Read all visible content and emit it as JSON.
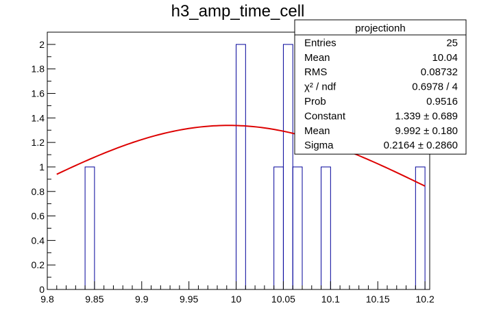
{
  "chart_data": {
    "type": "histogram",
    "title": "h3_amp_time_cell",
    "xlabel": "",
    "ylabel": "",
    "xlim": [
      9.8,
      10.205
    ],
    "ylim": [
      0,
      2.1
    ],
    "x_ticks": [
      "9.8",
      "9.85",
      "9.9",
      "9.95",
      "10",
      "10.05",
      "10.1",
      "10.15",
      "10.2"
    ],
    "y_ticks": [
      "0",
      "0.2",
      "0.4",
      "0.6",
      "0.8",
      "1",
      "1.2",
      "1.4",
      "1.6",
      "1.8",
      "2"
    ],
    "bin_width": 0.01,
    "bins": [
      {
        "lo": 9.84,
        "hi": 9.85,
        "count": 1
      },
      {
        "lo": 10.0,
        "hi": 10.01,
        "count": 2
      },
      {
        "lo": 10.04,
        "hi": 10.05,
        "count": 1
      },
      {
        "lo": 10.05,
        "hi": 10.06,
        "count": 2
      },
      {
        "lo": 10.06,
        "hi": 10.07,
        "count": 1
      },
      {
        "lo": 10.09,
        "hi": 10.1,
        "count": 1
      },
      {
        "lo": 10.19,
        "hi": 10.2,
        "count": 1
      }
    ],
    "fit": {
      "function": "gaus",
      "constant": 1.339,
      "mean": 9.992,
      "sigma": 0.2164,
      "x_range": [
        9.81,
        10.2
      ]
    },
    "colors": {
      "histogram": "#000099",
      "fit": "#dd0000"
    },
    "stats_box": {
      "title": "projectionh",
      "placement": "top-right",
      "rows": [
        {
          "label": "Entries",
          "value": "25"
        },
        {
          "label": "Mean",
          "value": "10.04"
        },
        {
          "label": "RMS",
          "value": "0.08732"
        },
        {
          "label": "χ² / ndf",
          "value": "0.6978 / 4"
        },
        {
          "label": "Prob",
          "value": "0.9516"
        },
        {
          "label": "Constant",
          "value": "1.339 ± 0.689"
        },
        {
          "label": "Mean",
          "value": "9.992 ± 0.180"
        },
        {
          "label": "Sigma",
          "value": "0.2164 ± 0.2860"
        }
      ]
    }
  }
}
